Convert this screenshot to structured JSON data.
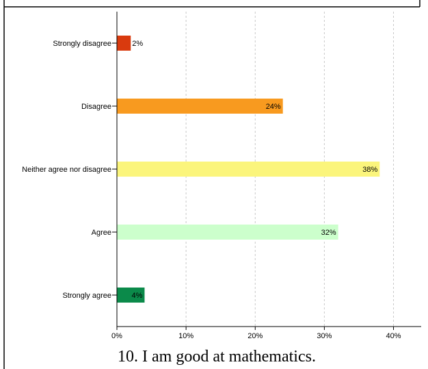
{
  "chart_data": {
    "type": "bar",
    "orientation": "horizontal",
    "title": "",
    "xlabel": "",
    "ylabel": "",
    "categories": [
      "Strongly disagree",
      "Disagree",
      "Neither agree nor disagree",
      "Agree",
      "Strongly agree"
    ],
    "values": [
      2,
      24,
      38,
      32,
      4
    ],
    "value_labels": [
      "2%",
      "24%",
      "38%",
      "32%",
      "4%"
    ],
    "colors": [
      "#d93a0e",
      "#f89a1f",
      "#fbf57c",
      "#ccffcc",
      "#0b8a4a"
    ],
    "xlim": [
      0,
      44
    ],
    "x_ticks": [
      0,
      10,
      20,
      30,
      40
    ],
    "x_tick_labels": [
      "0%",
      "10%",
      "20%",
      "30%",
      "40%"
    ],
    "grid": "vertical-dashed",
    "legend": "none"
  },
  "caption": "10. I am good at mathematics."
}
